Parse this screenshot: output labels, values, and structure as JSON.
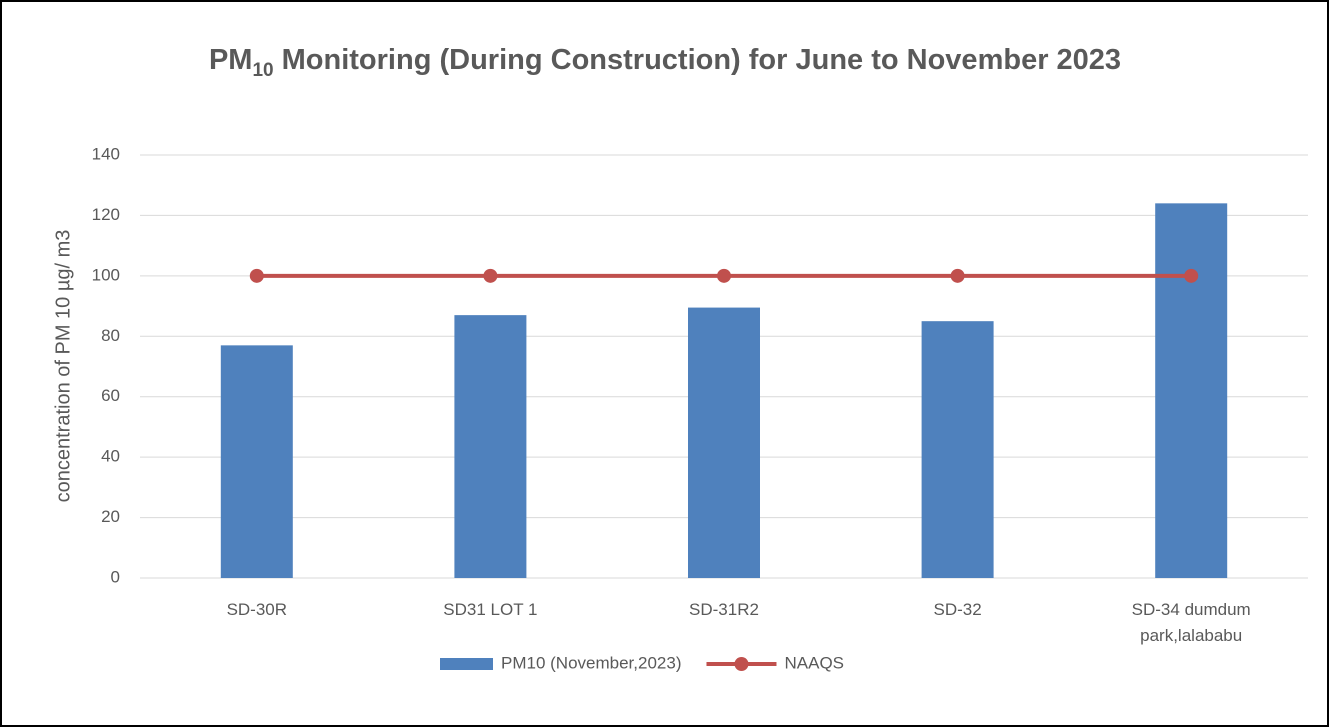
{
  "chart_data": {
    "type": "bar",
    "title": {
      "text": "PM",
      "subscript": "10",
      "rest": " Monitoring (During Construction) for June to  November 2023"
    },
    "ylabel": "concentration of PM 10 µg/ m3",
    "categories": [
      "SD-30R",
      "SD31 LOT 1",
      "SD-31R2",
      "SD-32",
      "SD-34 dumdum park,lalababu"
    ],
    "series": [
      {
        "name": "PM10 (November,2023)",
        "type": "bar",
        "color": "#4f81bd",
        "values": [
          77,
          87,
          89.5,
          85,
          124
        ]
      },
      {
        "name": "NAAQS",
        "type": "line",
        "color": "#c0504d",
        "values": [
          100,
          100,
          100,
          100,
          100
        ]
      }
    ],
    "ylim": [
      0,
      140
    ],
    "yticks": [
      0,
      20,
      40,
      60,
      80,
      100,
      120,
      140
    ],
    "grid": true,
    "legend": "bottom"
  }
}
